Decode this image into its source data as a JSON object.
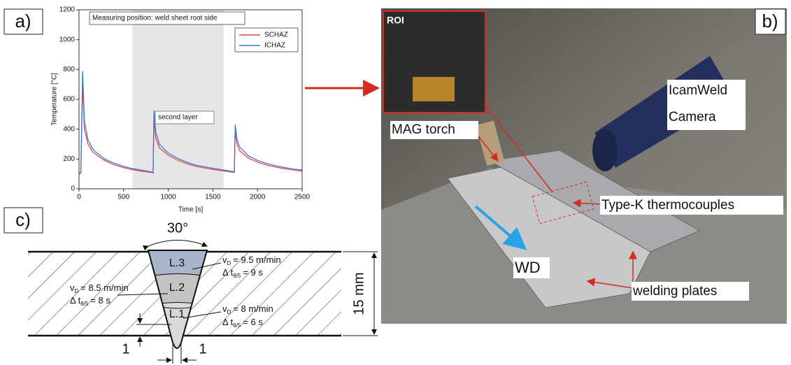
{
  "panel_labels": [
    "a)",
    "b)",
    "c)"
  ],
  "chart_data": {
    "type": "line",
    "annotations": [
      "Measuring position: weld sheet root side",
      "second layer"
    ],
    "xlabel": "Time [s]",
    "ylabel": "Temperature [°C]",
    "xlim": [
      0,
      2500
    ],
    "xticks": [
      0,
      500,
      1000,
      1500,
      2000,
      2500
    ],
    "ylim": [
      0,
      1200
    ],
    "yticks": [
      0,
      200,
      400,
      600,
      800,
      1000,
      1200
    ],
    "shaded_range": [
      600,
      1620
    ],
    "shade_color": "#e6e6e6",
    "x": [
      0,
      20,
      40,
      60,
      100,
      150,
      200,
      300,
      400,
      500,
      600,
      700,
      800,
      830,
      840,
      860,
      900,
      1000,
      1100,
      1200,
      1300,
      1400,
      1500,
      1600,
      1700,
      1740,
      1750,
      1770,
      1800,
      1900,
      2000,
      2100,
      2200,
      2300,
      2400,
      2500
    ],
    "series": [
      {
        "name": "SCHAZ",
        "color": "#e8474f",
        "values": [
          100,
          105,
          700,
          400,
          300,
          250,
          225,
          185,
          160,
          142,
          128,
          118,
          110,
          106,
          470,
          340,
          275,
          225,
          193,
          170,
          152,
          140,
          130,
          121,
          113,
          110,
          380,
          300,
          255,
          205,
          178,
          160,
          146,
          135,
          126,
          118
        ]
      },
      {
        "name": "ICHAZ",
        "color": "#3a78d6",
        "values": [
          105,
          110,
          790,
          450,
          330,
          270,
          240,
          195,
          170,
          150,
          135,
          125,
          115,
          110,
          525,
          380,
          300,
          240,
          205,
          180,
          160,
          148,
          138,
          128,
          118,
          115,
          430,
          330,
          280,
          220,
          190,
          170,
          155,
          143,
          133,
          125
        ]
      }
    ]
  },
  "photo": {
    "inset_label": "ROI",
    "labels": [
      "IcamWeld",
      "Camera",
      "MAG torch",
      "Type-K thermocouples",
      "WD",
      "welding plates"
    ]
  },
  "diagram": {
    "angle": "30°",
    "thickness": "15 mm",
    "gap": "1",
    "root": "1",
    "speed_symbol": "v",
    "speed_sub": "D",
    "time_symbol": "Δ t",
    "time_sub": "8/5",
    "layers": [
      {
        "name": "L.3",
        "speed": "= 9.5 m/min",
        "time": "= 9 s"
      },
      {
        "name": "L.2",
        "speed": "= 8.5 m/min",
        "time": "= 8 s"
      },
      {
        "name": "L.1",
        "speed": "= 8 m/min",
        "time": "= 6 s"
      }
    ]
  }
}
